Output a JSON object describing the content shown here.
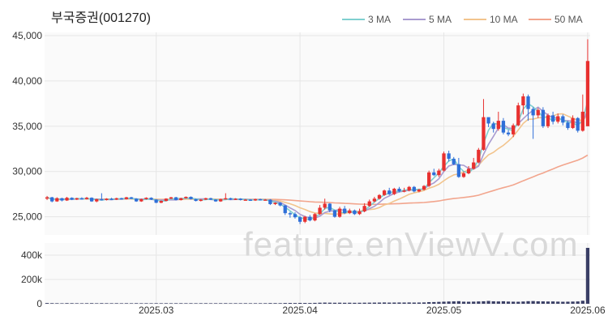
{
  "chart_data": {
    "type": "candlestick",
    "title": "부국증권(001270)",
    "watermark": "feature.enViewV.com",
    "legend": [
      {
        "name": "3 MA",
        "color": "#7fd0d0"
      },
      {
        "name": "5 MA",
        "color": "#a99bd0"
      },
      {
        "name": "10 MA",
        "color": "#f2c48d"
      },
      {
        "name": "50 MA",
        "color": "#f2a58d"
      }
    ],
    "legend_position": "top-right",
    "price_axis": {
      "ylim": [
        23000,
        45000
      ],
      "ticks": [
        "45,000",
        "40,000",
        "35,000",
        "30,000",
        "25,000"
      ],
      "tick_values": [
        45000,
        40000,
        35000,
        30000,
        25000
      ]
    },
    "volume_axis": {
      "ylim": [
        0,
        500000
      ],
      "ticks": [
        "400k",
        "200k",
        "0"
      ],
      "tick_values": [
        400000,
        200000,
        0
      ]
    },
    "x_ticks": [
      {
        "label": "2025.03",
        "index": 22
      },
      {
        "label": "2025.04",
        "index": 51
      },
      {
        "label": "2025.05",
        "index": 80
      },
      {
        "label": "2025.06",
        "index": 109
      }
    ],
    "colors": {
      "up": "#e8302f",
      "down": "#2f6fd8",
      "volume": "#3a3f66",
      "grid": "#e6e6e6",
      "ma3": "#7fd0d0",
      "ma5": "#a99bd0",
      "ma10": "#f2c48d",
      "ma50": "#f2a58d"
    },
    "candles": [
      [
        27000,
        27150,
        27300,
        26850
      ],
      [
        27150,
        26700,
        27200,
        26600
      ],
      [
        26700,
        27050,
        27150,
        26650
      ],
      [
        27050,
        26800,
        27100,
        26700
      ],
      [
        26800,
        27100,
        27200,
        26750
      ],
      [
        27100,
        26900,
        27150,
        26850
      ],
      [
        26900,
        27050,
        27100,
        26850
      ],
      [
        27050,
        26950,
        27150,
        26900
      ],
      [
        26950,
        27100,
        27200,
        26900
      ],
      [
        27100,
        26700,
        27150,
        26650
      ],
      [
        26700,
        26950,
        27000,
        26600
      ],
      [
        26950,
        26850,
        27600,
        26800
      ],
      [
        26850,
        27000,
        27050,
        26800
      ],
      [
        27000,
        26900,
        27100,
        26850
      ],
      [
        26900,
        27050,
        27100,
        26850
      ],
      [
        27050,
        26950,
        27100,
        26900
      ],
      [
        26950,
        27150,
        27200,
        26900
      ],
      [
        27150,
        27000,
        27200,
        26950
      ],
      [
        27000,
        26700,
        27050,
        26650
      ],
      [
        26700,
        26950,
        27000,
        26650
      ],
      [
        26950,
        27100,
        27150,
        26900
      ],
      [
        27100,
        26900,
        27150,
        26850
      ],
      [
        26900,
        26550,
        26950,
        26500
      ],
      [
        26550,
        26750,
        26800,
        26500
      ],
      [
        26750,
        27000,
        27050,
        26700
      ],
      [
        27000,
        27150,
        27200,
        26950
      ],
      [
        27150,
        26850,
        27200,
        26800
      ],
      [
        26850,
        27050,
        27100,
        26800
      ],
      [
        27050,
        27200,
        27250,
        27000
      ],
      [
        27200,
        26950,
        27250,
        26900
      ],
      [
        26950,
        26750,
        27000,
        26700
      ],
      [
        26750,
        26900,
        26950,
        26700
      ],
      [
        26900,
        27050,
        27100,
        26850
      ],
      [
        27050,
        26900,
        27100,
        26850
      ],
      [
        26900,
        26700,
        26950,
        26650
      ],
      [
        26700,
        26950,
        27000,
        26650
      ],
      [
        26950,
        27050,
        27600,
        26900
      ],
      [
        27050,
        26900,
        27100,
        26850
      ],
      [
        26900,
        27000,
        27050,
        26850
      ],
      [
        27000,
        26850,
        27050,
        26800
      ],
      [
        26850,
        26900,
        26950,
        26800
      ],
      [
        26900,
        26800,
        26950,
        26750
      ],
      [
        26800,
        26950,
        27000,
        26750
      ],
      [
        26950,
        26850,
        27000,
        26800
      ],
      [
        26850,
        26900,
        26950,
        26800
      ],
      [
        26900,
        26400,
        26950,
        26300
      ],
      [
        26400,
        26550,
        26600,
        26300
      ],
      [
        26550,
        26250,
        26600,
        26150
      ],
      [
        26250,
        25400,
        26300,
        25200
      ],
      [
        25400,
        25300,
        25550,
        24900
      ],
      [
        25300,
        24950,
        25500,
        24800
      ],
      [
        24950,
        24450,
        25100,
        24200
      ],
      [
        24450,
        25000,
        25100,
        24300
      ],
      [
        25000,
        24600,
        25200,
        24500
      ],
      [
        24600,
        25300,
        25400,
        24500
      ],
      [
        25300,
        26000,
        26300,
        25200
      ],
      [
        26000,
        26450,
        27000,
        25800
      ],
      [
        26450,
        25700,
        26500,
        25500
      ],
      [
        25700,
        25000,
        25800,
        24900
      ],
      [
        25000,
        25900,
        26100,
        24900
      ],
      [
        25900,
        25400,
        26200,
        25300
      ],
      [
        25400,
        25700,
        25900,
        25300
      ],
      [
        25700,
        25300,
        25800,
        25200
      ],
      [
        25300,
        25600,
        25900,
        25200
      ],
      [
        25600,
        26200,
        26500,
        25500
      ],
      [
        26200,
        26700,
        26900,
        26100
      ],
      [
        26700,
        27000,
        27200,
        26600
      ],
      [
        27000,
        27400,
        27500,
        26900
      ],
      [
        27400,
        27900,
        28000,
        27300
      ],
      [
        27900,
        27500,
        28200,
        27400
      ],
      [
        27500,
        28100,
        28200,
        27400
      ],
      [
        28100,
        27800,
        28300,
        27700
      ],
      [
        27800,
        27900,
        28200,
        27700
      ],
      [
        27900,
        28300,
        28400,
        27800
      ],
      [
        28300,
        27800,
        28400,
        27700
      ],
      [
        27800,
        28000,
        28100,
        27700
      ],
      [
        28000,
        28400,
        28500,
        27900
      ],
      [
        28400,
        29900,
        30100,
        28300
      ],
      [
        29900,
        29600,
        30300,
        29500
      ],
      [
        29600,
        30100,
        30300,
        29400
      ],
      [
        30100,
        32000,
        32200,
        30000
      ],
      [
        32000,
        31400,
        32300,
        31100
      ],
      [
        31400,
        30800,
        31600,
        30700
      ],
      [
        30800,
        29400,
        31500,
        29300
      ],
      [
        29400,
        29800,
        30000,
        29300
      ],
      [
        29800,
        30300,
        30600,
        29700
      ],
      [
        30300,
        31000,
        31500,
        30200
      ],
      [
        31000,
        32400,
        32600,
        30900
      ],
      [
        32400,
        36000,
        38000,
        32300
      ],
      [
        36000,
        35300,
        35900,
        34900
      ],
      [
        35300,
        34700,
        35500,
        34300
      ],
      [
        34700,
        35600,
        36600,
        34500
      ],
      [
        35600,
        34300,
        35900,
        34100
      ],
      [
        34300,
        34100,
        34600,
        33900
      ],
      [
        34100,
        35100,
        35300,
        33800
      ],
      [
        35100,
        37300,
        37600,
        35000
      ],
      [
        37300,
        38300,
        38600,
        36300
      ],
      [
        38300,
        36900,
        38500,
        35600
      ],
      [
        36900,
        36200,
        37100,
        33600
      ],
      [
        36200,
        36800,
        37000,
        35900
      ],
      [
        36800,
        35000,
        37100,
        34800
      ],
      [
        35000,
        36200,
        36400,
        34800
      ],
      [
        36200,
        35500,
        36600,
        35200
      ],
      [
        35500,
        36100,
        36400,
        35300
      ],
      [
        36100,
        35400,
        36300,
        35100
      ],
      [
        35400,
        34800,
        35600,
        34600
      ],
      [
        34800,
        35900,
        36200,
        34700
      ],
      [
        35900,
        34500,
        36000,
        34300
      ],
      [
        34500,
        36600,
        38500,
        34400
      ],
      [
        35000,
        42200,
        44600,
        35000
      ]
    ],
    "volume": [
      6000,
      5000,
      4500,
      4000,
      5200,
      4800,
      4300,
      4100,
      4600,
      5000,
      4200,
      4900,
      4400,
      4300,
      4600,
      4100,
      4500,
      4200,
      4700,
      4300,
      4400,
      4200,
      4600,
      4300,
      4500,
      4200,
      4400,
      4600,
      4300,
      4500,
      4200,
      4400,
      4600,
      4100,
      4300,
      4500,
      4700,
      4200,
      4400,
      4300,
      4500,
      4200,
      4300,
      4400,
      4600,
      5500,
      5200,
      5000,
      6200,
      6500,
      6000,
      6800,
      6400,
      6200,
      7200,
      8500,
      9500,
      8800,
      8200,
      8600,
      8000,
      8300,
      7800,
      8100,
      8700,
      9000,
      9400,
      9800,
      10500,
      9600,
      9900,
      10300,
      10100,
      10600,
      9800,
      10200,
      10800,
      13500,
      14000,
      15500,
      17000,
      18500,
      19500,
      21000,
      17000,
      16500,
      17500,
      19000,
      20500,
      23000,
      20000,
      19000,
      20500,
      18000,
      17000,
      16500,
      18500,
      21000,
      22000,
      20000,
      19500,
      18500,
      19000,
      17500,
      16500,
      17000,
      18000,
      19000,
      25000,
      460000
    ]
  }
}
